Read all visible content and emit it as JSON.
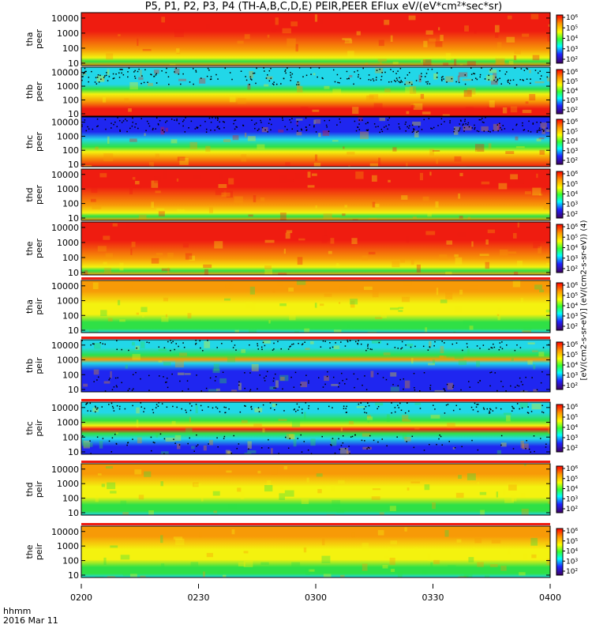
{
  "window": {
    "title": "P5, P1, P2, P3, P4 (TH-A,B,C,D,E) PEIR,PEER EFlux eV/(eV*cm²*sec*sr)"
  },
  "axis_time": {
    "ticks": [
      "0200",
      "0230",
      "0300",
      "0330",
      "0400"
    ],
    "label": "hhmm",
    "date": "2016 Mar 11"
  },
  "colorbar": {
    "ticks": [
      "10⁶",
      "10⁵",
      "10⁴",
      "10³",
      "10²"
    ],
    "units": "[eV/(cm2-s-sr-eV)] (eV/(cm2-s-sr-eV)) (4)"
  },
  "palette": {
    "black": "#000000",
    "blue": "#1f26f0",
    "cyan": "#22d7e8",
    "green": "#2fe046",
    "yellow": "#f4f20f",
    "orange": "#f79a07",
    "red": "#ef1c10"
  },
  "chart_data": {
    "type": "heatmap",
    "title": "P5, P1, P2, P3, P4 (TH-A,B,C,D,E) PEIR,PEER EFlux eV/(eV*cm²*sec*sr)",
    "x": {
      "label": "hhmm",
      "range": [
        "0200",
        "0400"
      ],
      "ticks": [
        "0200",
        "0230",
        "0300",
        "0330",
        "0400"
      ]
    },
    "y_scale": "log",
    "y_ticks": [
      10,
      100,
      1000,
      10000
    ],
    "z_scale": "log",
    "z_ticks": [
      "10^6",
      "10^5",
      "10^4",
      "10^3",
      "10^2"
    ],
    "panels": [
      {
        "label": "tha peer",
        "profile": "electron-hot"
      },
      {
        "label": "thb peer",
        "profile": "electron-cold-top-noise"
      },
      {
        "label": "thc peer",
        "profile": "electron-cold-blue"
      },
      {
        "label": "thd peer",
        "profile": "electron-hot"
      },
      {
        "label": "the peer",
        "profile": "electron-hot"
      },
      {
        "label": "tha peir",
        "profile": "ion"
      },
      {
        "label": "thb peir",
        "profile": "ion-blue"
      },
      {
        "label": "thc peir",
        "profile": "ion-blue-band"
      },
      {
        "label": "thd peir",
        "profile": "ion"
      },
      {
        "label": "the peir",
        "profile": "ion"
      }
    ]
  }
}
